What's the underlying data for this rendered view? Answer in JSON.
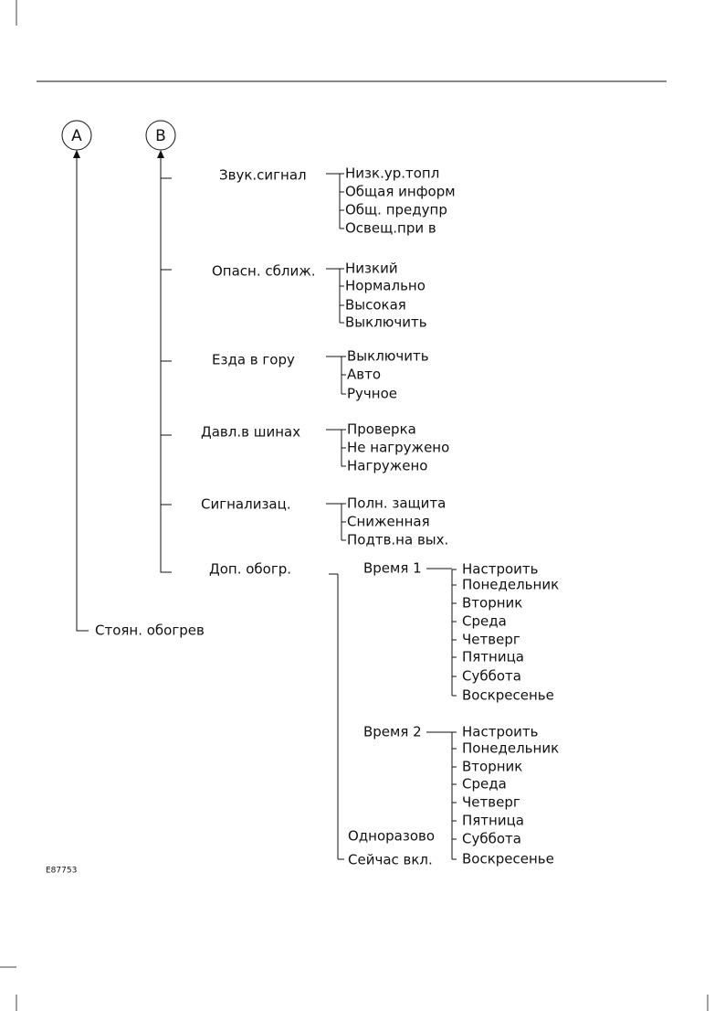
{
  "nodes": {
    "a": "A",
    "b": "B"
  },
  "a_item": "Стоян. обогрев",
  "menus": [
    {
      "label": "Звук.сигнал",
      "items": [
        "Низк.ур.топл",
        "Общая информ",
        "Общ. предупр",
        "Освещ.при в"
      ]
    },
    {
      "label": "Опасн. сближ.",
      "items": [
        "Низкий",
        "Нормально",
        "Высокая",
        "Выключить"
      ]
    },
    {
      "label": "Езда в гору",
      "items": [
        "Выключить",
        "Авто",
        "Ручное"
      ]
    },
    {
      "label": "Давл.в шинах",
      "items": [
        "Проверка",
        "Не нагружено",
        "Нагружено"
      ]
    },
    {
      "label": "Сигнализац.",
      "items": [
        "Полн. защита",
        "Сниженная",
        "Подтв.на вых."
      ]
    }
  ],
  "heater": {
    "label": "Доп. обогр.",
    "timers": [
      {
        "label": "Время 1",
        "items": [
          "Настроить",
          "Понедельник",
          "Вторник",
          "Среда",
          "Четверг",
          "Пятница",
          "Суббота",
          "Воскресенье"
        ]
      },
      {
        "label": "Время 2",
        "items": [
          "Настроить",
          "Понедельник",
          "Вторник",
          "Среда",
          "Четверг",
          "Пятница",
          "Суббота",
          "Воскресенье"
        ]
      }
    ],
    "others": [
      "Одноразово",
      "Сейчас вкл."
    ]
  },
  "figure_id": "E87753"
}
